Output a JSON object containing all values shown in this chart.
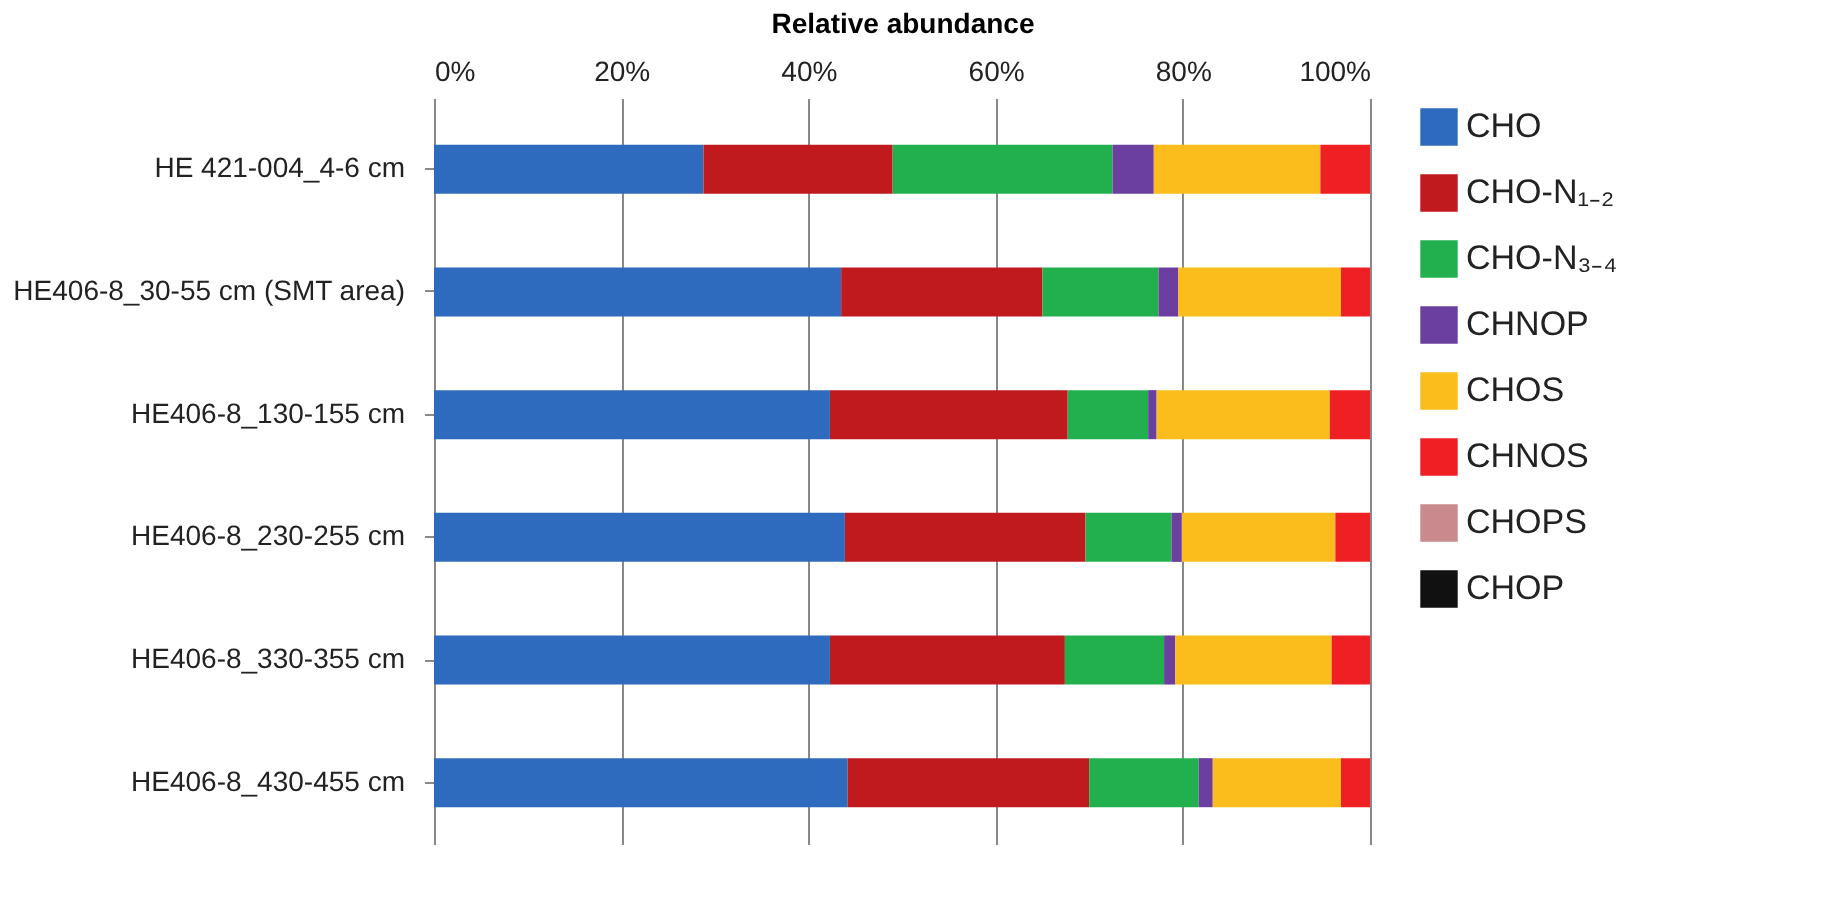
{
  "chart_data": {
    "type": "bar",
    "orientation": "horizontal",
    "stacked": true,
    "xlabel": "Relative abundance",
    "categories": [
      "HE 421-004_4-6 cm",
      "HE406-8_30-55 cm (SMT area)",
      "HE406-8_130-155 cm",
      "HE406-8_230-255 cm",
      "HE406-8_330-355 cm",
      "HE406-8_430-455 cm"
    ],
    "series": [
      {
        "name": "CHO",
        "color": "#2e6bbf",
        "values": [
          28.8,
          43.5,
          42.3,
          43.9,
          42.3,
          44.2
        ]
      },
      {
        "name": "CHO-N₁₋₂",
        "color": "#c0191e",
        "values": [
          20.2,
          21.5,
          25.4,
          25.7,
          25.1,
          25.8
        ]
      },
      {
        "name": "CHO-N₃₋₄",
        "color": "#22b04f",
        "values": [
          23.5,
          12.4,
          8.6,
          9.2,
          10.6,
          11.7
        ]
      },
      {
        "name": "CHNOP",
        "color": "#6a3fa0",
        "values": [
          4.4,
          2.1,
          0.9,
          1.1,
          1.2,
          1.5
        ]
      },
      {
        "name": "CHOS",
        "color": "#fbbd1b",
        "values": [
          17.8,
          17.4,
          18.5,
          16.4,
          16.7,
          13.7
        ]
      },
      {
        "name": "CHNOS",
        "color": "#ee2024",
        "values": [
          5.3,
          3.1,
          4.3,
          3.7,
          4.1,
          3.1
        ]
      },
      {
        "name": "CHOPS",
        "color": "#c98a8e",
        "values": [
          0,
          0,
          0,
          0,
          0,
          0
        ]
      },
      {
        "name": "CHOP",
        "color": "#111111",
        "values": [
          0,
          0,
          0,
          0,
          0,
          0
        ]
      }
    ],
    "xlim": [
      0,
      100
    ],
    "xticks": [
      {
        "value": 0,
        "label": "0%"
      },
      {
        "value": 20,
        "label": "20%"
      },
      {
        "value": 40,
        "label": "40%"
      },
      {
        "value": 60,
        "label": "60%"
      },
      {
        "value": 80,
        "label": "80%"
      },
      {
        "value": 100,
        "label": "100%"
      }
    ],
    "grid": "x",
    "legend": "right"
  }
}
